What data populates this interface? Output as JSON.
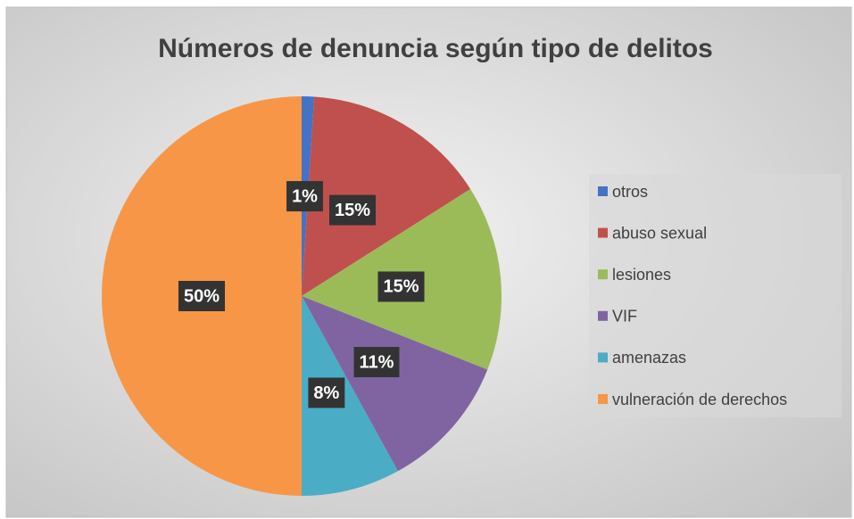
{
  "chart_data": {
    "type": "pie",
    "title": "Números de denuncia según tipo de delitos",
    "categories": [
      "otros",
      "abuso sexual",
      "lesiones",
      "VIF",
      "amenazas",
      "vulneración de derechos"
    ],
    "values": [
      1,
      15,
      15,
      11,
      8,
      50
    ],
    "value_labels": [
      "1%",
      "15%",
      "15%",
      "11%",
      "8%",
      "50%"
    ],
    "colors": [
      "#4472c4",
      "#c0504d",
      "#9bbb59",
      "#8064a2",
      "#4bacc6",
      "#f79646"
    ],
    "legend": "right"
  }
}
